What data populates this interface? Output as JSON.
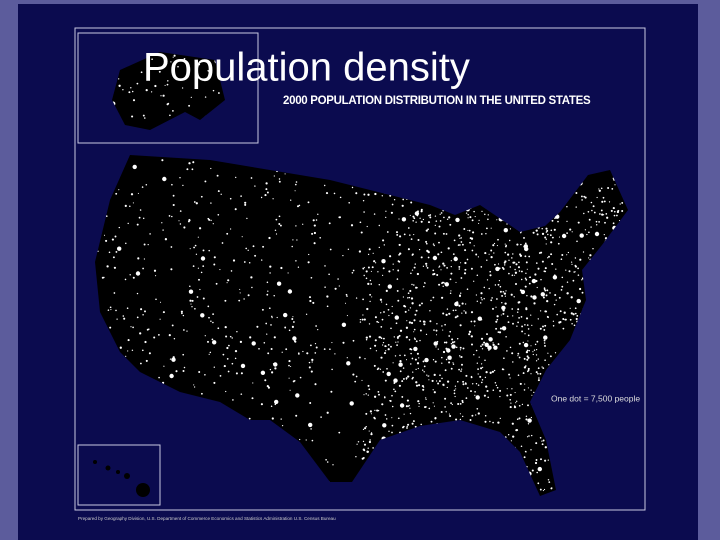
{
  "slide": {
    "title": "Population density",
    "map": {
      "subtitle": "2000 POPULATION DISTRIBUTION IN THE UNITED STATES",
      "legend": "One dot = 7,500 people",
      "credit": "Prepared by Geography Division, U.S. Department of Commerce Economics and Statistics Administration U.S. Census Bureau"
    }
  }
}
